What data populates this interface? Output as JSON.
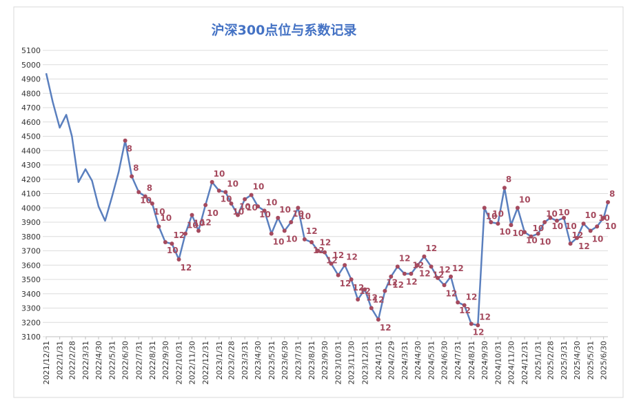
{
  "chart_data": {
    "type": "line",
    "title": "沪深300点位与系数记录",
    "x": [
      "2021/12/31",
      "2022/1/15",
      "2022/1/31",
      "2022/2/15",
      "2022/2/28",
      "2022/3/15",
      "2022/3/31",
      "2022/4/15",
      "2022/4/30",
      "2022/5/15",
      "2022/5/31",
      "2022/6/15",
      "2022/6/30",
      "2022/7/15",
      "2022/7/31",
      "2022/8/15",
      "2022/8/31",
      "2022/9/15",
      "2022/9/30",
      "2022/10/15",
      "2022/10/31",
      "2022/11/15",
      "2022/11/30",
      "2022/12/15",
      "2022/12/31",
      "2023/1/15",
      "2023/1/31",
      "2023/2/15",
      "2023/2/28",
      "2023/3/15",
      "2023/3/31",
      "2023/4/15",
      "2023/4/30",
      "2023/5/15",
      "2023/5/31",
      "2023/6/15",
      "2023/6/30",
      "2023/7/15",
      "2023/7/31",
      "2023/8/15",
      "2023/8/31",
      "2023/9/15",
      "2023/9/30",
      "2023/10/15",
      "2023/10/31",
      "2023/11/15",
      "2023/11/30",
      "2023/12/15",
      "2023/12/31",
      "2024/1/15",
      "2024/1/31",
      "2024/2/15",
      "2024/2/29",
      "2024/3/15",
      "2024/3/31",
      "2024/4/15",
      "2024/4/30",
      "2024/5/15",
      "2024/5/31",
      "2024/6/15",
      "2024/6/30",
      "2024/7/15",
      "2024/7/31",
      "2024/8/15",
      "2024/8/31",
      "2024/9/15",
      "2024/9/30",
      "2024/10/15",
      "2024/10/31",
      "2024/11/15",
      "2024/11/30",
      "2024/12/15",
      "2024/12/31",
      "2025/1/15",
      "2025/1/31",
      "2025/2/15",
      "2025/2/28",
      "2025/3/15",
      "2025/3/31",
      "2025/4/15",
      "2025/4/30",
      "2025/5/15",
      "2025/5/31",
      "2025/6/15",
      "2025/6/30",
      "2025/7/10"
    ],
    "series": [
      {
        "color": "#5a7fbe",
        "marker_color": "#a54a5e",
        "values": [
          4940,
          4740,
          4560,
          4650,
          4500,
          4180,
          4270,
          4190,
          4010,
          3910,
          4080,
          4250,
          4470,
          4220,
          4110,
          4080,
          4030,
          3870,
          3760,
          3750,
          3640,
          3820,
          3950,
          3840,
          4020,
          4180,
          4120,
          4110,
          4030,
          3950,
          4060,
          4090,
          4010,
          3980,
          3820,
          3930,
          3840,
          3900,
          4000,
          3780,
          3760,
          3700,
          3690,
          3610,
          3530,
          3600,
          3500,
          3360,
          3430,
          3300,
          3220,
          3420,
          3520,
          3590,
          3540,
          3540,
          3600,
          3660,
          3590,
          3510,
          3460,
          3520,
          3340,
          3320,
          3190,
          3180,
          4000,
          3900,
          3890,
          4140,
          3880,
          4000,
          3830,
          3800,
          3820,
          3900,
          3930,
          3910,
          3930,
          3750,
          3790,
          3890,
          3840,
          3870,
          3930,
          4040
        ],
        "point_labels": [
          null,
          null,
          null,
          null,
          null,
          null,
          null,
          null,
          null,
          null,
          null,
          null,
          8,
          8,
          10,
          8,
          10,
          10,
          10,
          12,
          12,
          10,
          10,
          12,
          10,
          10,
          10,
          10,
          10,
          10,
          10,
          10,
          10,
          10,
          10,
          10,
          10,
          10,
          10,
          12,
          12,
          12,
          12,
          12,
          12,
          12,
          12,
          12,
          12,
          12,
          12,
          12,
          12,
          12,
          12,
          12,
          12,
          12,
          12,
          12,
          12,
          12,
          12,
          12,
          12,
          12,
          10,
          10,
          10,
          8,
          10,
          10,
          10,
          10,
          10,
          10,
          10,
          10,
          10,
          12,
          12,
          10,
          10,
          10,
          10,
          8
        ]
      }
    ],
    "xticks": [
      "2021/12/31",
      "2022/1/31",
      "2022/2/28",
      "2022/3/31",
      "2022/4/30",
      "2022/5/31",
      "2022/6/30",
      "2022/7/31",
      "2022/8/31",
      "2022/9/30",
      "2022/10/31",
      "2022/11/30",
      "2022/12/31",
      "2023/1/31",
      "2023/2/28",
      "2023/3/31",
      "2023/4/30",
      "2023/5/31",
      "2023/6/30",
      "2023/7/31",
      "2023/8/31",
      "2023/9/30",
      "2023/10/31",
      "2023/11/30",
      "2023/12/31",
      "2024/1/31",
      "2024/2/29",
      "2024/3/31",
      "2024/4/30",
      "2024/5/31",
      "2024/6/30",
      "2024/7/31",
      "2024/8/31",
      "2024/9/30",
      "2024/10/31",
      "2024/11/30",
      "2024/12/31",
      "2025/1/31",
      "2025/2/28",
      "2025/3/31",
      "2025/4/30",
      "2025/5/31",
      "2025/6/30"
    ],
    "xlim": [
      "2021/12/31",
      "2025/7/10"
    ],
    "ylim": [
      3100,
      5100
    ],
    "yticks": [
      3100,
      3200,
      3300,
      3400,
      3500,
      3600,
      3700,
      3800,
      3900,
      4000,
      4100,
      4200,
      4300,
      4400,
      4500,
      4600,
      4700,
      4800,
      4900,
      5000,
      5100
    ],
    "grid": true
  }
}
